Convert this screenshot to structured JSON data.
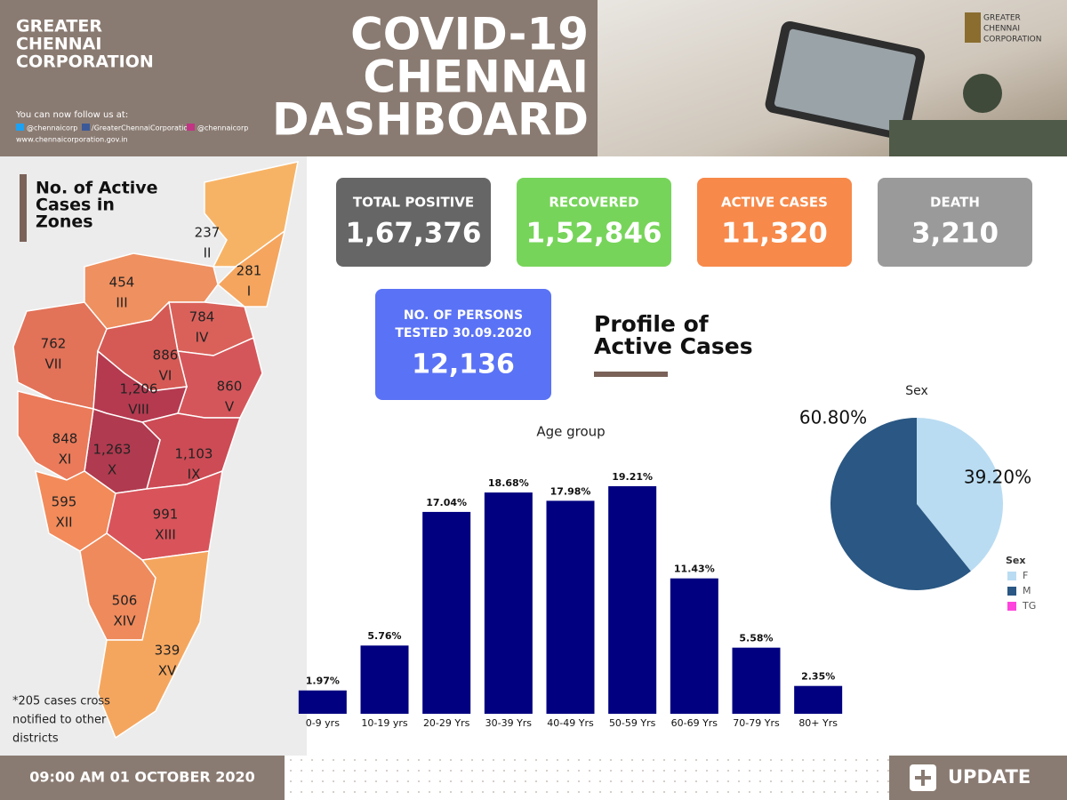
{
  "header": {
    "org_name": [
      "GREATER",
      "CHENNAI",
      "CORPORATION"
    ],
    "follow": "You can now follow us at:",
    "social": [
      "@chennaicorp",
      "/GreaterChennaiCorporation",
      "@chennaicorp"
    ],
    "website": "www.chennaicorporation.gov.in",
    "title": [
      "COVID-19",
      "CHENNAI",
      "DASHBOARD"
    ],
    "logo_text": [
      "GREATER",
      "CHENNAI",
      "CORPORATION"
    ]
  },
  "map": {
    "title": [
      "No. of Active",
      "Cases in",
      "Zones"
    ],
    "zones": [
      {
        "count": "281",
        "zone": "I"
      },
      {
        "count": "237",
        "zone": "II"
      },
      {
        "count": "454",
        "zone": "III"
      },
      {
        "count": "784",
        "zone": "IV"
      },
      {
        "count": "860",
        "zone": "V"
      },
      {
        "count": "886",
        "zone": "VI"
      },
      {
        "count": "762",
        "zone": "VII"
      },
      {
        "count": "1,206",
        "zone": "VIII"
      },
      {
        "count": "1,103",
        "zone": "IX"
      },
      {
        "count": "1,263",
        "zone": "X"
      },
      {
        "count": "848",
        "zone": "XI"
      },
      {
        "count": "595",
        "zone": "XII"
      },
      {
        "count": "991",
        "zone": "XIII"
      },
      {
        "count": "506",
        "zone": "XIV"
      },
      {
        "count": "339",
        "zone": "XV"
      }
    ],
    "footnote": [
      "*205 cases cross",
      "notified to other",
      "districts"
    ]
  },
  "cards": [
    {
      "label": "TOTAL POSITIVE",
      "value": "1,67,376"
    },
    {
      "label": "RECOVERED",
      "value": "1,52,846"
    },
    {
      "label": "ACTIVE CASES",
      "value": "11,320"
    },
    {
      "label": "DEATH",
      "value": "3,210"
    }
  ],
  "tested": {
    "label": [
      "NO. OF PERSONS",
      "TESTED 30.09.2020"
    ],
    "value": "12,136"
  },
  "profile_heading": [
    "Profile of",
    "Active Cases"
  ],
  "chart_data": [
    {
      "type": "bar",
      "title": "Age group",
      "categories": [
        "0-9 yrs",
        "10-19 yrs",
        "20-29 Yrs",
        "30-39 Yrs",
        "40-49 Yrs",
        "50-59 Yrs",
        "60-69 Yrs",
        "70-79 Yrs",
        "80+ Yrs"
      ],
      "values": [
        1.97,
        5.76,
        17.04,
        18.68,
        17.98,
        19.21,
        11.43,
        5.58,
        2.35
      ],
      "value_labels": [
        "1.97%",
        "5.76%",
        "17.04%",
        "18.68%",
        "17.98%",
        "19.21%",
        "11.43%",
        "5.58%",
        "2.35%"
      ],
      "color": "#000080"
    },
    {
      "type": "pie",
      "title": "Sex",
      "categories": [
        "F",
        "M",
        "TG"
      ],
      "values": [
        39.2,
        60.8,
        0
      ],
      "value_labels": [
        "39.20%",
        "60.80%",
        null
      ],
      "colors": [
        "#b9dcf2",
        "#2a5783",
        "#ff44dd"
      ],
      "legend_title": "Sex"
    }
  ],
  "footer": {
    "timestamp": "09:00 AM 01 OCTOBER 2020",
    "button": "UPDATE"
  }
}
